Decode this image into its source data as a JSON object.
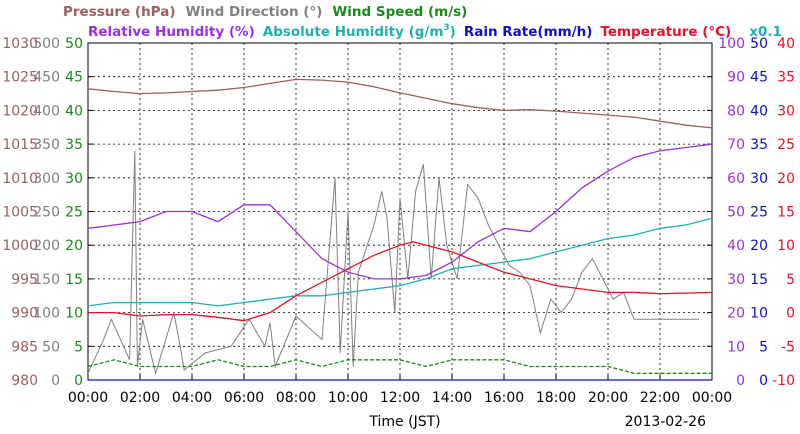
{
  "chart_data": {
    "type": "line",
    "date": "2013-02-26",
    "xlabel": "Time (JST)",
    "x_ticks": [
      "00:00",
      "02:00",
      "04:00",
      "06:00",
      "08:00",
      "10:00",
      "12:00",
      "14:00",
      "16:00",
      "18:00",
      "20:00",
      "22:00",
      "00:00"
    ],
    "x_range_hours": [
      0,
      24
    ],
    "grid": true,
    "legend_row1": [
      {
        "text": "Pressure (hPa)",
        "color": "#9a6060"
      },
      {
        "text": "Wind Direction (°)",
        "color": "#808080"
      },
      {
        "text": "Wind Speed (m/s)",
        "color": "#1a8a1a"
      }
    ],
    "legend_row2": [
      {
        "text": "Relative Humidity (%)",
        "color": "#9b30e0"
      },
      {
        "text": "Absolute Humidity (g/m",
        "sup": "3",
        "close": ")",
        "color": "#20b0b0"
      },
      {
        "text": "Rain Rate(mm/h)",
        "color": "#1010c0"
      },
      {
        "text": "Temperature (°C)",
        "color": "#e8102a"
      },
      {
        "text": "x0.1",
        "color": "#20b0b0"
      }
    ],
    "axes": {
      "pressure": {
        "color": "#9a6060",
        "ticks": [
          "1030",
          "1025",
          "1020",
          "1015",
          "1010",
          "1005",
          "1000",
          "995",
          "990",
          "985",
          "980"
        ],
        "range": [
          980,
          1030
        ]
      },
      "wind_dir": {
        "color": "#808080",
        "ticks": [
          "500",
          "450",
          "400",
          "350",
          "300",
          "250",
          "200",
          "150",
          "100",
          "50",
          "0"
        ],
        "range": [
          0,
          500
        ]
      },
      "wind_speed": {
        "color": "#1a8a1a",
        "ticks": [
          "50",
          "45",
          "40",
          "35",
          "30",
          "25",
          "20",
          "15",
          "10",
          "5",
          "0"
        ],
        "range": [
          0,
          50
        ]
      },
      "humidity": {
        "color": "#9b30e0",
        "ticks": [
          "100",
          "90",
          "80",
          "70",
          "60",
          "50",
          "40",
          "30",
          "20",
          "10",
          "0"
        ],
        "range": [
          0,
          100
        ]
      },
      "rain": {
        "color": "#1010c0",
        "ticks": [
          "50",
          "45",
          "40",
          "35",
          "30",
          "25",
          "20",
          "15",
          "10",
          "5",
          "0"
        ],
        "range": [
          0,
          50
        ]
      },
      "temperature": {
        "color": "#e8102a",
        "ticks": [
          "40",
          "35",
          "30",
          "25",
          "20",
          "15",
          "10",
          "5",
          "0",
          "-5",
          "-10"
        ],
        "range": [
          -10,
          40
        ]
      }
    },
    "series": [
      {
        "name": "Pressure",
        "unit": "hPa",
        "axis": "pressure",
        "color": "#9a6060",
        "x": [
          0,
          1,
          2,
          3,
          4,
          5,
          6,
          7,
          8,
          9,
          10,
          11,
          12,
          13,
          14,
          15,
          16,
          17,
          18,
          19,
          20,
          21,
          22,
          23,
          24
        ],
        "y": [
          1023.2,
          1022.8,
          1022.5,
          1022.6,
          1022.8,
          1023.0,
          1023.4,
          1024.0,
          1024.6,
          1024.5,
          1024.2,
          1023.5,
          1022.6,
          1021.8,
          1021.0,
          1020.4,
          1020.0,
          1020.1,
          1019.9,
          1019.6,
          1019.3,
          1019.0,
          1018.4,
          1017.8,
          1017.4
        ]
      },
      {
        "name": "Wind Direction",
        "unit": "deg",
        "axis": "wind_dir",
        "color": "#808080",
        "x": [
          0,
          0.6,
          0.9,
          1.6,
          1.8,
          1.9,
          2.1,
          2.6,
          3.3,
          3.5,
          3.7,
          4.5,
          5.5,
          6.2,
          6.8,
          7.0,
          7.2,
          8.0,
          9.0,
          9.5,
          9.7,
          10.0,
          10.2,
          10.4,
          11.0,
          11.3,
          11.5,
          11.8,
          12.0,
          12.3,
          12.6,
          12.9,
          13.2,
          13.5,
          13.8,
          14.2,
          14.6,
          15.0,
          15.4,
          15.8,
          16.2,
          16.6,
          17.0,
          17.4,
          17.8,
          18.2,
          18.6,
          19.0,
          19.4,
          19.8,
          20.2,
          20.6,
          21.0,
          22.0,
          23.5
        ],
        "y": [
          10,
          60,
          90,
          30,
          340,
          20,
          90,
          10,
          100,
          60,
          15,
          40,
          50,
          90,
          50,
          85,
          20,
          95,
          60,
          300,
          40,
          250,
          20,
          160,
          230,
          280,
          240,
          100,
          270,
          150,
          280,
          320,
          150,
          300,
          200,
          150,
          290,
          270,
          230,
          200,
          170,
          160,
          140,
          70,
          120,
          100,
          120,
          160,
          180,
          150,
          120,
          130,
          90,
          90,
          90
        ]
      },
      {
        "name": "Wind Speed",
        "unit": "m/s",
        "axis": "wind_speed",
        "color": "#1a8a1a",
        "x": [
          0,
          1,
          2,
          3,
          4,
          5,
          6,
          7,
          8,
          9,
          10,
          11,
          12,
          13,
          14,
          15,
          16,
          17,
          18,
          19,
          20,
          21,
          22,
          23,
          24
        ],
        "y": [
          2,
          3,
          2,
          2,
          2,
          3,
          2,
          2,
          3,
          2,
          3,
          3,
          3,
          2,
          3,
          3,
          3,
          2,
          2,
          2,
          2,
          1,
          1,
          1,
          1
        ]
      },
      {
        "name": "Relative Humidity",
        "unit": "%",
        "axis": "humidity",
        "color": "#9b30e0",
        "x": [
          0,
          1,
          2,
          3,
          4,
          5,
          6,
          7,
          8,
          9,
          10,
          11,
          12,
          13,
          14,
          15,
          16,
          17,
          18,
          19,
          20,
          21,
          22,
          23,
          24
        ],
        "y": [
          45,
          46,
          47,
          50,
          50,
          47,
          52,
          52,
          44,
          36,
          32,
          30,
          30,
          31,
          35,
          41,
          45,
          44,
          50,
          57,
          62,
          66,
          68,
          69,
          70
        ]
      },
      {
        "name": "Absolute Humidity",
        "unit": "g/m3 x0.1",
        "axis": "humidity",
        "color": "#20b0b0",
        "x": [
          0,
          1,
          2,
          3,
          4,
          5,
          6,
          7,
          8,
          9,
          10,
          11,
          12,
          13,
          14,
          15,
          16,
          17,
          18,
          19,
          20,
          21,
          22,
          23,
          24
        ],
        "y": [
          22,
          23,
          23,
          23,
          23,
          22,
          23,
          24,
          25,
          25,
          26,
          27,
          28,
          30,
          33,
          34,
          35,
          36,
          38,
          40,
          42,
          43,
          45,
          46,
          48
        ]
      },
      {
        "name": "Rain Rate",
        "unit": "mm/h",
        "axis": "rain",
        "color": "#1010c0",
        "x": [
          0,
          24
        ],
        "y": [
          0,
          0
        ]
      },
      {
        "name": "Temperature",
        "unit": "°C",
        "axis": "temperature",
        "color": "#e8102a",
        "x": [
          0,
          1,
          2,
          3,
          4,
          5,
          6,
          7,
          8,
          9,
          10,
          11,
          12,
          12.5,
          13,
          14,
          15,
          16,
          17,
          18,
          19,
          20,
          21,
          22,
          23,
          24
        ],
        "y": [
          0,
          0,
          -0.5,
          -0.3,
          -0.3,
          -0.7,
          -1.2,
          0,
          2.5,
          4.5,
          6.5,
          8.5,
          10,
          10.5,
          10,
          9,
          7.5,
          6,
          5,
          4,
          3.5,
          3,
          3,
          2.8,
          2.9,
          3
        ]
      }
    ]
  }
}
